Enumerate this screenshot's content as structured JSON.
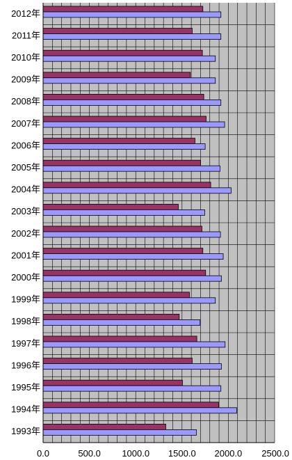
{
  "chart_data": {
    "type": "bar",
    "orientation": "horizontal",
    "categories": [
      "2012年",
      "2011年",
      "2010年",
      "2009年",
      "2008年",
      "2007年",
      "2006年",
      "2005年",
      "2004年",
      "2003年",
      "2002年",
      "2001年",
      "2000年",
      "1999年",
      "1998年",
      "1997年",
      "1996年",
      "1995年",
      "1994年",
      "1993年"
    ],
    "series": [
      {
        "color": "#993366",
        "values": [
          1725,
          1610,
          1720,
          1590,
          1735,
          1760,
          1640,
          1700,
          1810,
          1460,
          1715,
          1725,
          1755,
          1580,
          1470,
          1660,
          1610,
          1505,
          1895,
          1325
        ]
      },
      {
        "color": "#9999ff",
        "values": [
          1920,
          1920,
          1860,
          1860,
          1920,
          1960,
          1750,
          1910,
          2030,
          1745,
          1915,
          1945,
          1925,
          1860,
          1695,
          1965,
          1925,
          1920,
          2090,
          1655
        ]
      }
    ],
    "xticks": [
      "0.0",
      "500.0",
      "1000.0",
      "1500.0",
      "2000.0",
      "2500.0"
    ],
    "xlim": [
      0,
      2500
    ],
    "grid": true,
    "minor_grid_step": 100,
    "plot_background": "#c0c0c0",
    "legend": "none"
  }
}
